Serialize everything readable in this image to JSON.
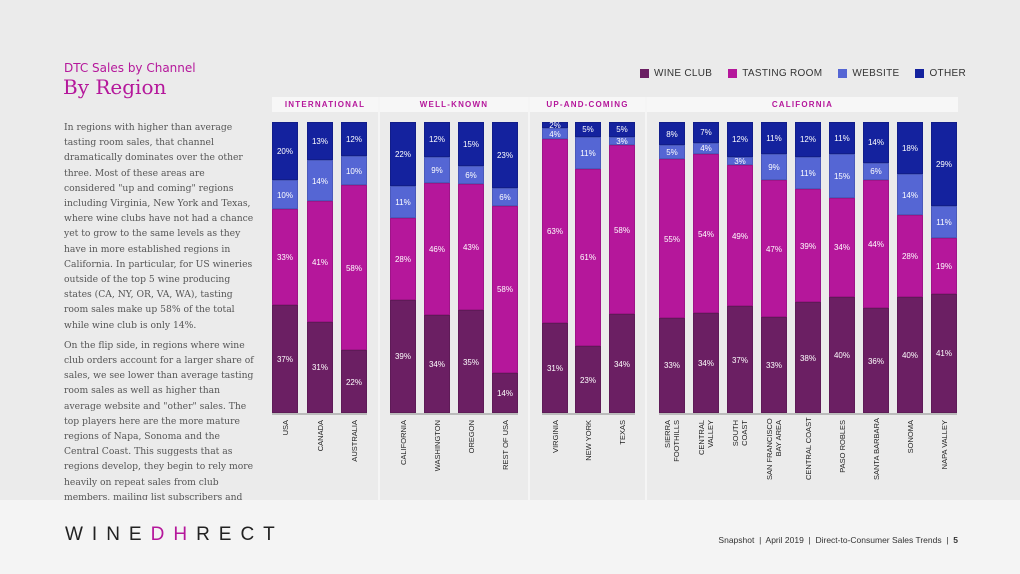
{
  "header": {
    "subtitle": "DTC Sales by Channel",
    "title": "By Region"
  },
  "body_paragraphs": [
    "In regions with higher than average tasting room sales, that channel dramatically dominates over the other three. Most of these areas are considered \"up and coming\" regions including Virginia, New York and Texas, where wine clubs have not had a chance yet to grow to the same levels as they have in more established regions in California. In particular, for US wineries outside of the top 5 wine producing states (CA, NY, OR, VA, WA), tasting room sales make up 58% of the total while wine club is only 14%.",
    "On the flip side, in regions where wine club orders account for a larger share of sales, we see lower than average tasting room sales as well as higher than average website and \"other\" sales. The top players here are the more mature regions of Napa, Sonoma and the Central Coast. This suggests that as regions develop, they begin to rely more heavily on repeat sales from club members, mailing list subscribers and telesales."
  ],
  "footer": {
    "logo": "WINEDIRECT",
    "logo_left": "WINE",
    "logo_mark": "DH",
    "logo_right": "RECT",
    "snapshot": "Snapshot",
    "date": "April 2019",
    "report": "Direct-to-Consumer Sales Trends",
    "page": "5"
  },
  "chart_data": {
    "type": "bar",
    "stacked": true,
    "percent": true,
    "legend": "top-right",
    "grid": false,
    "groups": [
      {
        "name": "INTERNATIONAL",
        "categories": [
          "USA",
          "CANADA",
          "AUSTRALIA"
        ]
      },
      {
        "name": "WELL-KNOWN",
        "categories": [
          "CALIFORNIA",
          "WASHINGTON",
          "OREGON",
          "REST OF USA"
        ]
      },
      {
        "name": "UP-AND-COMING",
        "categories": [
          "VIRGINIA",
          "NEW YORK",
          "TEXAS"
        ]
      },
      {
        "name": "CALIFORNIA",
        "categories": [
          "SIERRA\nFOOTHILLS",
          "CENTRAL\nVALLEY",
          "SOUTH\nCOAST",
          "SAN FRANCISCO\nBAY AREA",
          "CENTRAL COAST",
          "PASO ROBLES",
          "SANTA BARBARA",
          "SONOMA",
          "NAPA VALLEY"
        ]
      }
    ],
    "series": [
      {
        "name": "WINE CLUB",
        "color": "#6b1f63",
        "values": [
          37,
          31,
          22,
          39,
          34,
          35,
          14,
          31,
          23,
          34,
          33,
          34,
          37,
          33,
          38,
          40,
          36,
          40,
          41
        ]
      },
      {
        "name": "TASTING ROOM",
        "color": "#b5179b",
        "values": [
          33,
          41,
          58,
          28,
          46,
          43,
          58,
          63,
          61,
          58,
          55,
          54,
          49,
          47,
          39,
          34,
          44,
          28,
          19
        ]
      },
      {
        "name": "WEBSITE",
        "color": "#5566d4",
        "values": [
          10,
          14,
          10,
          11,
          9,
          6,
          6,
          4,
          11,
          3,
          5,
          4,
          3,
          9,
          11,
          15,
          6,
          14,
          11
        ]
      },
      {
        "name": "OTHER",
        "color": "#14229e",
        "values": [
          20,
          13,
          12,
          22,
          12,
          15,
          23,
          2,
          5,
          5,
          8,
          7,
          12,
          11,
          12,
          11,
          14,
          18,
          29
        ]
      }
    ]
  }
}
